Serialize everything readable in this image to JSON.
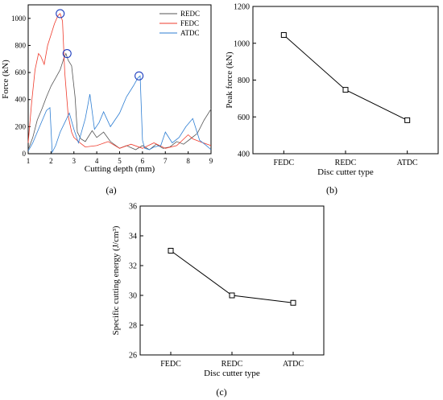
{
  "chart_data": [
    {
      "panel": "(a)",
      "type": "line",
      "xlabel": "Cutting depth (mm)",
      "ylabel": "Force (kN)",
      "xlim": [
        1,
        9
      ],
      "ylim": [
        0,
        1100
      ],
      "xticks": [
        "1",
        "2",
        "3",
        "4",
        "5",
        "6",
        "7",
        "8",
        "9"
      ],
      "yticks": [
        "0",
        "200",
        "400",
        "600",
        "800",
        "1000"
      ],
      "legend_position": "top-right",
      "series": [
        {
          "name": "REDC",
          "color": "#555555",
          "x": [
            1.0,
            1.2,
            1.4,
            1.6,
            1.8,
            2.0,
            2.2,
            2.4,
            2.55,
            2.65,
            2.75,
            2.9,
            3.05,
            3.15,
            3.3,
            3.5,
            3.8,
            4.0,
            4.3,
            4.6,
            5.0,
            5.3,
            5.7,
            6.0,
            6.3,
            6.6,
            6.9,
            7.2,
            7.5,
            7.8,
            8.1,
            8.4,
            8.7,
            9.0
          ],
          "y": [
            30,
            120,
            250,
            330,
            420,
            500,
            560,
            620,
            700,
            740,
            690,
            650,
            420,
            160,
            110,
            90,
            170,
            120,
            160,
            90,
            40,
            60,
            30,
            60,
            30,
            70,
            40,
            50,
            90,
            70,
            110,
            150,
            250,
            330
          ]
        },
        {
          "name": "FEDC",
          "color": "#ef3b2c",
          "x": [
            1.0,
            1.15,
            1.3,
            1.45,
            1.55,
            1.7,
            1.85,
            2.0,
            2.15,
            2.3,
            2.4,
            2.5,
            2.6,
            2.75,
            2.9,
            3.0,
            3.2,
            3.5,
            4.0,
            4.5,
            5.0,
            5.5,
            6.0,
            6.5,
            7.0,
            7.5,
            8.0,
            8.2,
            8.5,
            9.0
          ],
          "y": [
            80,
            380,
            620,
            740,
            720,
            660,
            800,
            880,
            960,
            1020,
            1035,
            980,
            600,
            280,
            160,
            120,
            90,
            50,
            60,
            90,
            40,
            70,
            40,
            80,
            40,
            60,
            140,
            110,
            90,
            60
          ]
        },
        {
          "name": "ATDC",
          "color": "#2e7ed3",
          "x": [
            1.0,
            1.2,
            1.4,
            1.6,
            1.8,
            1.95,
            2.05,
            2.2,
            2.4,
            2.6,
            2.8,
            3.0,
            3.2,
            3.5,
            3.7,
            3.9,
            4.1,
            4.3,
            4.6,
            5.0,
            5.3,
            5.6,
            5.8,
            5.9,
            6.0,
            6.1,
            6.3,
            6.5,
            6.8,
            7.0,
            7.3,
            7.6,
            7.9,
            8.2,
            8.5,
            8.8,
            9.0
          ],
          "y": [
            20,
            80,
            160,
            240,
            320,
            340,
            10,
            60,
            160,
            230,
            300,
            180,
            80,
            260,
            440,
            180,
            230,
            310,
            200,
            300,
            420,
            500,
            560,
            575,
            100,
            40,
            30,
            50,
            60,
            160,
            80,
            120,
            200,
            260,
            100,
            60,
            30
          ]
        }
      ],
      "circled_peaks": [
        {
          "x": 2.4,
          "y": 1035
        },
        {
          "x": 2.7,
          "y": 740
        },
        {
          "x": 5.85,
          "y": 575
        }
      ]
    },
    {
      "panel": "(b)",
      "type": "line",
      "xlabel": "Disc cutter type",
      "ylabel": "Peak force (kN)",
      "categories": [
        "FEDC",
        "REDC",
        "ATDC"
      ],
      "values": [
        1045,
        747,
        582
      ],
      "ylim": [
        400,
        1200
      ],
      "yticks": [
        "400",
        "600",
        "800",
        "1000",
        "1200"
      ],
      "color": "#000000"
    },
    {
      "panel": "(c)",
      "type": "line",
      "xlabel": "Disc cutter type",
      "ylabel": "Specific cutting energy (J/cm³)",
      "categories": [
        "FEDC",
        "REDC",
        "ATDC"
      ],
      "values": [
        33.0,
        30.0,
        29.5
      ],
      "ylim": [
        26,
        36
      ],
      "yticks": [
        "26",
        "28",
        "30",
        "32",
        "34",
        "36"
      ],
      "color": "#000000"
    }
  ],
  "labels": {
    "a": "(a)",
    "b": "(b)",
    "c": "(c)"
  },
  "colors": {
    "circle": "#1f3fbf",
    "axis": "#000000"
  }
}
